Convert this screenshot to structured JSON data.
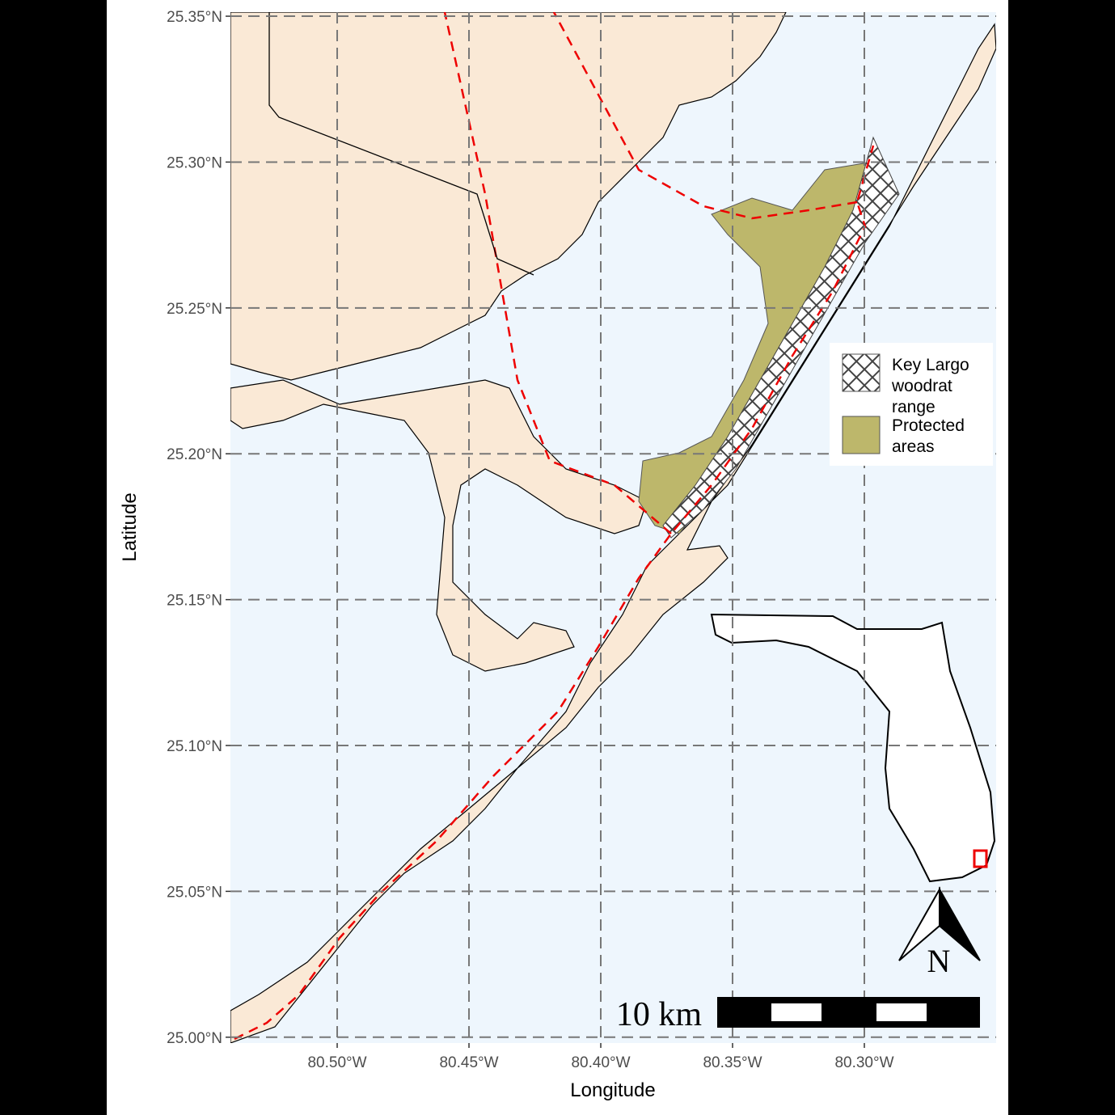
{
  "map": {
    "xlabel": "Longitude",
    "ylabel": "Latitude",
    "xlim": [
      -80.5405,
      -80.25
    ],
    "ylim": [
      24.998,
      25.3514
    ],
    "xticks": [
      {
        "value": -80.5,
        "label": "80.50°W"
      },
      {
        "value": -80.45,
        "label": "80.45°W"
      },
      {
        "value": -80.4,
        "label": "80.40°W"
      },
      {
        "value": -80.35,
        "label": "80.35°W"
      },
      {
        "value": -80.3,
        "label": "80.30°W"
      }
    ],
    "yticks": [
      {
        "value": 25.0,
        "label": "25.00°N"
      },
      {
        "value": 25.05,
        "label": "25.05°N"
      },
      {
        "value": 25.1,
        "label": "25.10°N"
      },
      {
        "value": 25.15,
        "label": "25.15°N"
      },
      {
        "value": 25.2,
        "label": "25.20°N"
      },
      {
        "value": 25.25,
        "label": "25.25°N"
      },
      {
        "value": 25.3,
        "label": "25.30°N"
      },
      {
        "value": 25.35,
        "label": "25.35°N"
      }
    ],
    "legend": [
      {
        "lines": [
          "Key Largo",
          "woodrat",
          "range"
        ]
      },
      {
        "lines": [
          "Protected",
          "areas"
        ]
      }
    ],
    "scale_bar": "10 km",
    "north": "N"
  }
}
